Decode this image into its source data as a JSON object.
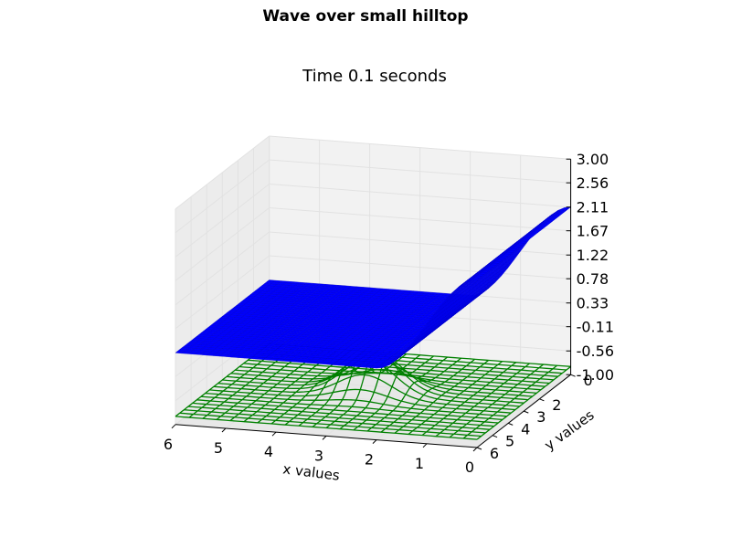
{
  "chart_data": {
    "type": "surface3d",
    "title": "Wave over small hilltop",
    "subtitle": "Time 0.1 seconds",
    "xlabel": "x values",
    "ylabel": "y values",
    "xlim": [
      0,
      6
    ],
    "ylim": [
      0,
      6
    ],
    "zlim": [
      -1.0,
      3.0
    ],
    "xticks": [
      "0",
      "1",
      "2",
      "3",
      "4",
      "5",
      "6"
    ],
    "yticks": [
      "0",
      "2",
      "3",
      "4",
      "5",
      "6"
    ],
    "zticks": [
      "-1.00",
      "-0.56",
      "-0.11",
      "0.33",
      "0.78",
      "1.22",
      "1.67",
      "2.11",
      "2.56",
      "3.00"
    ],
    "series": [
      {
        "kind": "surface",
        "color": "#0000ff",
        "edge_color": "#0000cc",
        "description_values": {
          "baseline_z": 0.33,
          "peak_z": 2.11,
          "peak_at_x": 0,
          "ramp_starts_x": 2
        }
      },
      {
        "kind": "wireframe",
        "color": "#008000",
        "description_values": {
          "base_z": -0.85,
          "hill_center": [
            3,
            3
          ],
          "hill_top_z": -0.11
        }
      }
    ],
    "grid": true,
    "colors": {
      "pane": "#f2f2f2",
      "grid": "#e2e2e2"
    }
  }
}
